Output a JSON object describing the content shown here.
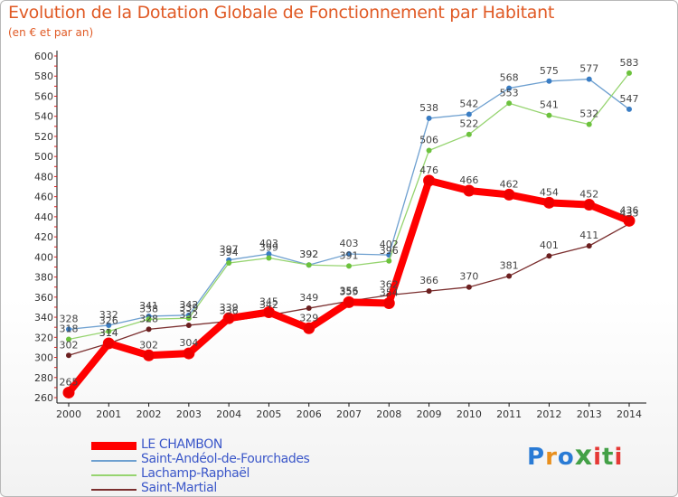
{
  "title": "Evolution de la Dotation Globale de Fonctionnement par Habitant",
  "subtitle": "(en € et par an)",
  "logo": {
    "text": "Proxiti",
    "colors": [
      "#2a7bd5",
      "#e88f1d",
      "#2a7bd5",
      "#43a047",
      "#e53935",
      "#43a047",
      "#e53935"
    ]
  },
  "chart_data": {
    "type": "line",
    "x": [
      "2000",
      "2001",
      "2002",
      "2003",
      "2004",
      "2005",
      "2006",
      "2007",
      "2008",
      "2009",
      "2010",
      "2011",
      "2012",
      "2013",
      "2014"
    ],
    "ylim": [
      260,
      600
    ],
    "yticks": [
      260,
      280,
      300,
      320,
      340,
      360,
      380,
      400,
      420,
      440,
      460,
      480,
      500,
      520,
      540,
      560,
      580,
      600
    ],
    "grid": false,
    "legend_position": "bottom",
    "series": [
      {
        "name": "Saint-Andéol-de-Fourchades",
        "color": "#6ea0d0",
        "marker": "#3a7dc4",
        "values": [
          328,
          332,
          341,
          342,
          397,
          403,
          392,
          403,
          402,
          538,
          542,
          568,
          575,
          577,
          547
        ]
      },
      {
        "name": "Lachamp-Raphaël",
        "color": "#96d470",
        "marker": "#6cc23d",
        "values": [
          318,
          326,
          338,
          339,
          394,
          399,
          392,
          391,
          396,
          506,
          522,
          553,
          541,
          532,
          583
        ]
      },
      {
        "name": "Saint-Martial",
        "color": "#7b2f2f",
        "marker": "#6b1f1f",
        "values": [
          302,
          314,
          328,
          332,
          336,
          342,
          349,
          356,
          362,
          366,
          370,
          381,
          401,
          411,
          433
        ]
      },
      {
        "name": "LE CHAMBON",
        "color": "#ff0000",
        "marker": "#ee0000",
        "values": [
          265,
          314,
          302,
          304,
          339,
          345,
          329,
          355,
          354,
          476,
          466,
          462,
          454,
          452,
          436
        ]
      }
    ]
  }
}
